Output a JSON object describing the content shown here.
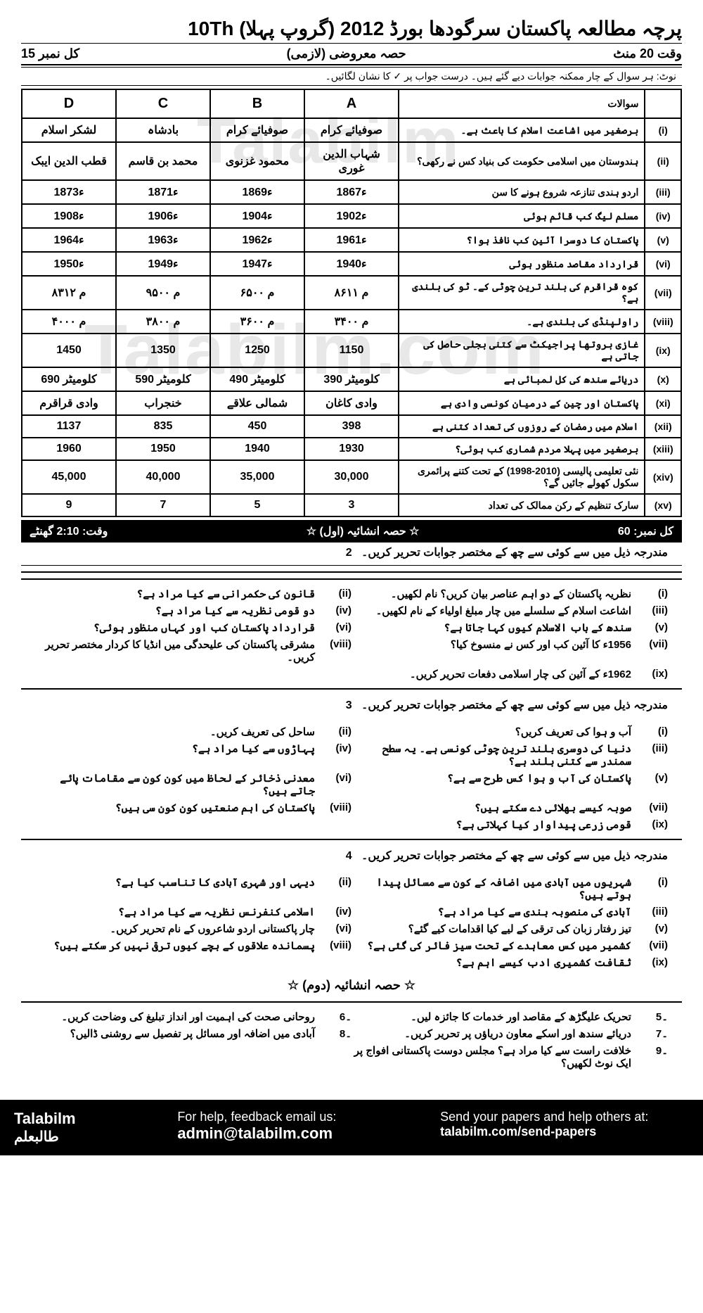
{
  "watermarks": {
    "wm1": "Talabilm",
    "wm2": "Talabilm.com"
  },
  "header": {
    "title": "پرچہ مطالعہ پاکستان سرگودھا بورڈ 2012 (گروپ پہلا) 10Th",
    "time": "وقت 20 منٹ",
    "center": "حصہ معروضی (لازمی)",
    "marks": "کل نمبر 15"
  },
  "note_text": "نوٹ: ہر سوال کے چار ممکنہ جوابات دیے گئے ہیں۔ درست جواب پر ✓ کا نشان لگائیں۔",
  "mcq": {
    "headers": {
      "d": "D",
      "c": "C",
      "b": "B",
      "a": "A",
      "q": "سوالات",
      "n": ""
    },
    "rows": [
      {
        "n": "(i)",
        "q": "برصغیر میں اشاعت اسلام کا باعث ہے۔",
        "a": "صوفیائے کرام",
        "b": "صوفیائے کرام",
        "c": "بادشاہ",
        "d": "لشکر اسلام"
      },
      {
        "n": "(ii)",
        "q": "ہندوستان میں اسلامی حکومت کی بنیاد کس نے رکھی؟",
        "a": "شہاب الدین غوری",
        "b": "محمود غزنوی",
        "c": "محمد بن قاسم",
        "d": "قطب الدین ایبک"
      },
      {
        "n": "(iii)",
        "q": "اردو ہندی تنازعہ شروع ہونے کا سن",
        "a": "ء1867",
        "b": "ء1869",
        "c": "ء1871",
        "d": "ء1873"
      },
      {
        "n": "(iv)",
        "q": "مسلم لیگ کب قائم ہوئی",
        "a": "ء1902",
        "b": "ء1904",
        "c": "ء1906",
        "d": "ء1908"
      },
      {
        "n": "(v)",
        "q": "پاکستان کا دوسرا آئین کب نافذ ہوا؟",
        "a": "ء1961",
        "b": "ء1962",
        "c": "ء1963",
        "d": "ء1964"
      },
      {
        "n": "(vi)",
        "q": "قرارداد مقاصد منظور ہوئی",
        "a": "ء1940",
        "b": "ء1947",
        "c": "ء1949",
        "d": "ء1950"
      },
      {
        "n": "(vii)",
        "q": "کوہ قراقرم کی بلند ترین چوٹی کے۔ ٹو کی بلندی ہے؟",
        "a": "۸۶۱۱ م",
        "b": "۶۵۰۰ م",
        "c": "۹۵۰۰ م",
        "d": "۸۳۱۲ م"
      },
      {
        "n": "(viii)",
        "q": "راولپنڈی کی بلندی ہے۔",
        "a": "۳۴۰۰ م",
        "b": "۳۶۰۰ م",
        "c": "۳۸۰۰ م",
        "d": "۴۰۰۰ م"
      },
      {
        "n": "(ix)",
        "q": "غازی بروتھا پراجیکٹ سے کتنی بجلی حاصل کی جاتی ہے",
        "a": "1150",
        "b": "1250",
        "c": "1350",
        "d": "1450"
      },
      {
        "n": "(x)",
        "q": "دریائے سندھ کی کل لمبائی ہے",
        "a": "390 کلومیٹر",
        "b": "490 کلومیٹر",
        "c": "590 کلومیٹر",
        "d": "690 کلومیٹر"
      },
      {
        "n": "(xi)",
        "q": "پاکستان اور چین کے درمیان کونسی وادی ہے",
        "a": "وادی کاغان",
        "b": "شمالی علاقے",
        "c": "خنجراب",
        "d": "وادی قراقرم"
      },
      {
        "n": "(xii)",
        "q": "اسلام میں رمضان کے روزوں کی تعداد کتنی ہے",
        "a": "398",
        "b": "450",
        "c": "835",
        "d": "1137"
      },
      {
        "n": "(xiii)",
        "q": "برصغیر میں پہلا مردم شماری کب ہوئی؟",
        "a": "1930",
        "b": "1940",
        "c": "1950",
        "d": "1960"
      },
      {
        "n": "(xiv)",
        "q": "نئی تعلیمی پالیسی (2010-1998) کے تحت کتنے پرائمری سکول کھولے جائیں گے؟",
        "a": "30,000",
        "b": "35,000",
        "c": "40,000",
        "d": "45,000"
      },
      {
        "n": "(xv)",
        "q": "سارک تنظیم کے رکن ممالک کی تعداد",
        "a": "3",
        "b": "5",
        "c": "7",
        "d": "9"
      }
    ]
  },
  "bar": {
    "left": "کل نمبر: 60",
    "center": "☆ حصہ انشائیہ (اول) ☆",
    "right": "وقت: 2:10 گھنٹے"
  },
  "section2_heading": "مندرجہ ذیل میں سے کوئی سے چھ کے مختصر جوابات تحریر کریں۔",
  "q2": [
    {
      "n": "(i)",
      "t": "نظریہ پاکستان کے دو اہم عناصر بیان کریں؟ نام لکھیں۔"
    },
    {
      "n": "(ii)",
      "t": "قانون کی حکمرانی سے کیا مراد ہے؟"
    },
    {
      "n": "(iii)",
      "t": "اشاعت اسلام کے سلسلے میں چار مبلغ اولیاء کے نام لکھیں۔"
    },
    {
      "n": "(iv)",
      "t": "دو قومی نظریہ سے کیا مراد ہے؟"
    },
    {
      "n": "(v)",
      "t": "سندھ کے باب الاسلام کیوں کہا جاتا ہے؟"
    },
    {
      "n": "(vi)",
      "t": "قرارداد پاکستان کب اور کہاں منظور ہوئی؟"
    },
    {
      "n": "(vii)",
      "t": "1956ء کا آئین کب اور کس نے منسوخ کیا؟"
    },
    {
      "n": "(viii)",
      "t": "مشرقی پاکستان کی علیحدگی میں انڈیا کا کردار مختصر تحریر کریں۔"
    },
    {
      "n": "(ix)",
      "t": "1962ء کے آئین کی چار اسلامی دفعات تحریر کریں۔"
    }
  ],
  "q3_heading": "مندرجہ ذیل میں سے کوئی سے چھ کے مختصر جوابات تحریر کریں۔",
  "q3": [
    {
      "n": "(i)",
      "t": "آب و ہوا کی تعریف کریں؟"
    },
    {
      "n": "(ii)",
      "t": "ساحل کی تعریف کریں۔"
    },
    {
      "n": "(iii)",
      "t": "دنیا کی دوسری بلند ترین چوٹی کونسی ہے۔ یہ سطح سمندر سے کتنی بلند ہے؟"
    },
    {
      "n": "(iv)",
      "t": "پہاڑوں سے کیا مراد ہے؟"
    },
    {
      "n": "(v)",
      "t": "پاکستان کی آب و ہوا کس طرح سے ہے؟"
    },
    {
      "n": "(vi)",
      "t": "معدنی ذخائر کے لحاظ میں کون کون سے مقامات پائے جاتے ہیں؟"
    },
    {
      "n": "(vii)",
      "t": "صوبہ کیسے بھلائی دے سکتے ہیں؟"
    },
    {
      "n": "(viii)",
      "t": "پاکستان کی اہم صنعتیں کون کون سی ہیں؟"
    },
    {
      "n": "(ix)",
      "t": "قومی زرعی پیداوار کیا کہلاتی ہے؟"
    }
  ],
  "q4_heading": "مندرجہ ذیل میں سے کوئی سے چھ کے مختصر جوابات تحریر کریں۔",
  "q4": [
    {
      "n": "(i)",
      "t": "شہریوں میں آبادی میں اضافہ کے کون سے مسائل پیدا ہوتے ہیں؟"
    },
    {
      "n": "(ii)",
      "t": "دیہی اور شہری آبادی کا تناسب کیا ہے؟"
    },
    {
      "n": "(iii)",
      "t": "آبادی کی منصوبہ بندی سے کیا مراد ہے؟"
    },
    {
      "n": "(iv)",
      "t": "اسلامی کنفرنس نظریہ سے کیا مراد ہے؟"
    },
    {
      "n": "(v)",
      "t": "تیز رفتار زبان کی ترقی کے لیے کیا اقدامات کیے گئے؟"
    },
    {
      "n": "(vi)",
      "t": "چار پاکستانی اردو شاعروں کے نام تحریر کریں۔"
    },
    {
      "n": "(vii)",
      "t": "کشمیر میں کس معاہدے کے تحت سیز فائر کی گئی ہے؟"
    },
    {
      "n": "(viii)",
      "t": "پسماندہ علاقوں کے بچے کیوں ترقی نہیں کر سکتے ہیں؟"
    },
    {
      "n": "(ix)",
      "t": "ثقافت کشمیری ادب کیسے اہم ہے؟"
    }
  ],
  "sec_label": "☆ حصہ انشائیہ (دوم) ☆",
  "long_q": [
    {
      "n": "۔5",
      "t": "تحریک علیگڑھ کے مقاصد اور خدمات کا جائزہ لیں۔"
    },
    {
      "n": "۔6",
      "t": "روحانی صحت کی اہمیت اور انداز تبلیغ کی وضاحت کریں۔"
    },
    {
      "n": "۔7",
      "t": "دریائے سندھ اور اسکے معاون دریاؤں پر تحریر کریں۔"
    },
    {
      "n": "۔8",
      "t": "آبادی میں اضافہ اور مسائل پر تفصیل سے روشنی ڈالیں؟"
    },
    {
      "n": "۔9",
      "t": "خلافت راست سے کیا مراد ہے؟ مجلس دوست پاکستانی افواج پر ایک نوٹ لکھیں؟"
    }
  ],
  "footer": {
    "brand_en": "Talabilm",
    "brand_ur": "طالبعلم",
    "help_label": "For help, feedback email us:",
    "email": "admin@talabilm.com",
    "send_label": "Send your papers and help others at:",
    "send_link": "talabilm.com/send-papers"
  }
}
